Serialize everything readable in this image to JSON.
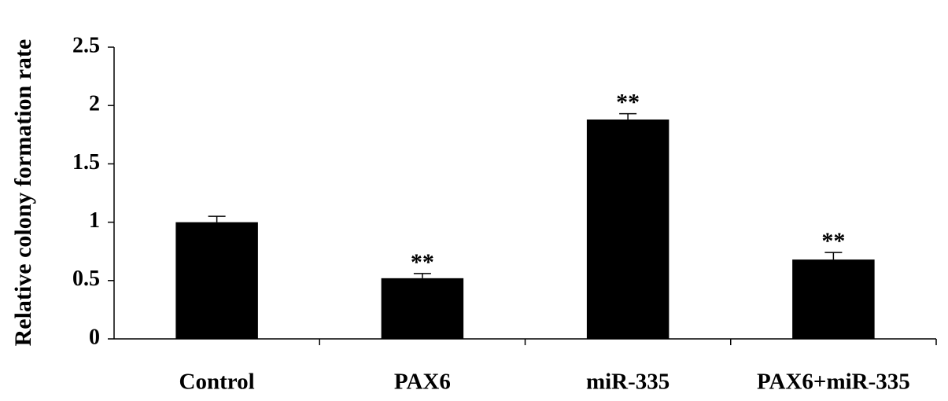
{
  "chart_data": {
    "type": "bar",
    "y_label": "Relative colony formation rate",
    "categories": [
      "Control",
      "PAX6",
      "miR-335",
      "PAX6+miR-335"
    ],
    "values": [
      1.0,
      0.52,
      1.88,
      0.68
    ],
    "errors": [
      0.05,
      0.04,
      0.05,
      0.06
    ],
    "significance": [
      null,
      "**",
      "**",
      "**"
    ],
    "color": "#000000",
    "ylim": [
      0,
      2.5
    ],
    "yticks": [
      0,
      0.5,
      1,
      1.5,
      2,
      2.5
    ],
    "grid": false
  }
}
